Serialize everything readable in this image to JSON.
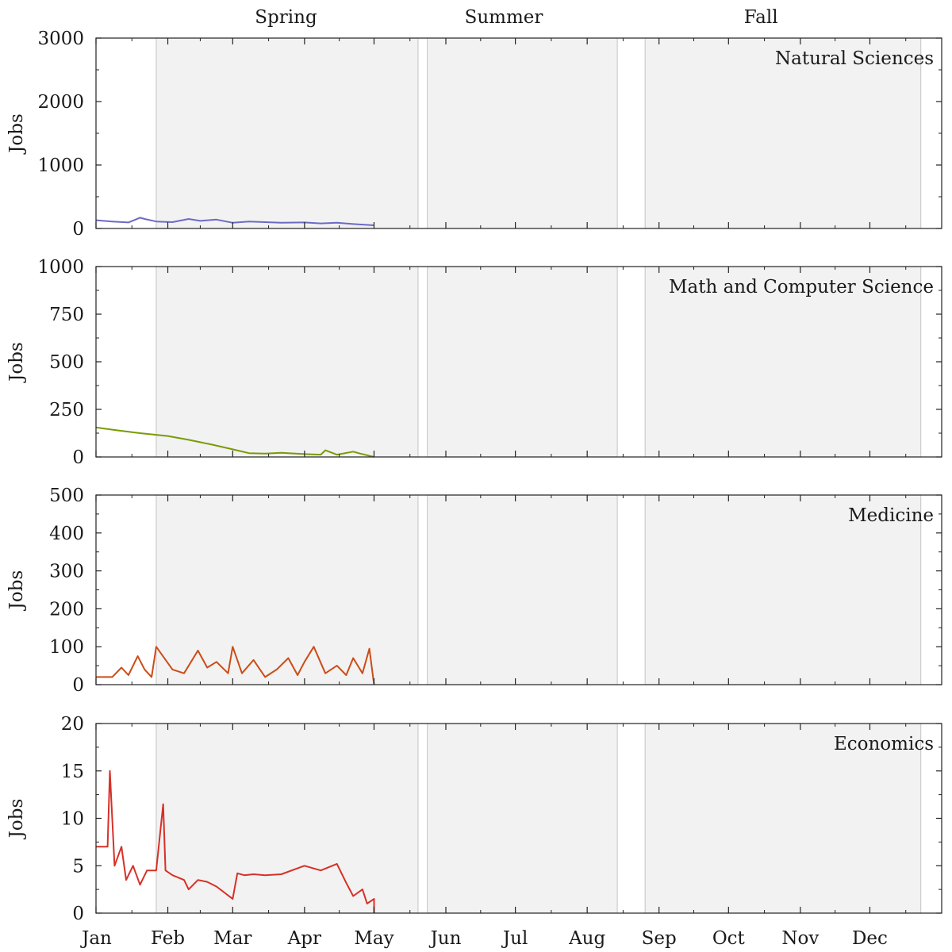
{
  "figure": {
    "season_labels": [
      {
        "name": "Spring",
        "center": "Mar 24"
      },
      {
        "name": "Summer",
        "center": "Jun 26"
      },
      {
        "name": "Fall",
        "center": "Oct 15"
      }
    ],
    "shaded_periods": [
      {
        "name": "Spring",
        "start": "Jan 27",
        "end": "May 20"
      },
      {
        "name": "Summer",
        "start": "May 24",
        "end": "Aug 14"
      },
      {
        "name": "Fall",
        "start": "Aug 26",
        "end": "Dec 23"
      }
    ],
    "x_tick_labels": [
      "Jan",
      "Feb",
      "Mar",
      "Apr",
      "May",
      "Jun",
      "Jul",
      "Aug",
      "Sep",
      "Oct",
      "Nov",
      "Dec"
    ],
    "colors": {
      "shade": "#f2f2f2",
      "shade_edge": "#c4c4c4",
      "axis": "#222222"
    }
  },
  "chart_data": [
    {
      "type": "line",
      "title": "Natural Sciences",
      "ylabel": "Jobs",
      "ylim": [
        0,
        3000
      ],
      "yticks": [
        0,
        1000,
        2000,
        3000
      ],
      "grid": false,
      "color": "#6b6bc7",
      "x": [
        "Jan 1",
        "Jan 8",
        "Jan 15",
        "Jan 20",
        "Jan 22",
        "Jan 27",
        "Feb 3",
        "Feb 10",
        "Feb 15",
        "Feb 22",
        "Mar 1",
        "Mar 8",
        "Mar 15",
        "Mar 22",
        "Apr 1",
        "Apr 8",
        "Apr 15",
        "Apr 22",
        "May 1"
      ],
      "values": [
        130,
        110,
        95,
        170,
        150,
        110,
        100,
        150,
        120,
        140,
        90,
        110,
        100,
        90,
        95,
        80,
        90,
        70,
        50
      ]
    },
    {
      "type": "line",
      "title": "Math and Computer Science",
      "ylabel": "Jobs",
      "ylim": [
        0,
        1000
      ],
      "yticks": [
        0,
        250,
        500,
        750,
        1000
      ],
      "grid": false,
      "color": "#7a9a05",
      "x": [
        "Jan 1",
        "Jan 10",
        "Jan 20",
        "Feb 1",
        "Feb 10",
        "Feb 20",
        "Mar 1",
        "Mar 8",
        "Mar 15",
        "Mar 22",
        "Apr 1",
        "Apr 8",
        "Apr 10",
        "Apr 15",
        "Apr 22",
        "Apr 25",
        "May 1"
      ],
      "values": [
        155,
        140,
        125,
        110,
        90,
        65,
        40,
        20,
        18,
        22,
        15,
        12,
        35,
        12,
        28,
        18,
        0
      ]
    },
    {
      "type": "line",
      "title": "Medicine",
      "ylabel": "Jobs",
      "ylim": [
        0,
        500
      ],
      "yticks": [
        0,
        100,
        200,
        300,
        400,
        500
      ],
      "grid": false,
      "color": "#cc4c16",
      "x": [
        "Jan 1",
        "Jan 8",
        "Jan 12",
        "Jan 15",
        "Jan 19",
        "Jan 22",
        "Jan 25",
        "Jan 27",
        "Feb 3",
        "Feb 8",
        "Feb 14",
        "Feb 18",
        "Feb 22",
        "Feb 27",
        "Mar 1",
        "Mar 5",
        "Mar 10",
        "Mar 15",
        "Mar 20",
        "Mar 25",
        "Mar 29",
        "Apr 1",
        "Apr 5",
        "Apr 10",
        "Apr 15",
        "Apr 19",
        "Apr 22",
        "Apr 26",
        "Apr 29",
        "May 1"
      ],
      "values": [
        20,
        20,
        45,
        25,
        75,
        40,
        20,
        100,
        40,
        30,
        90,
        45,
        60,
        30,
        100,
        30,
        65,
        20,
        40,
        70,
        25,
        60,
        100,
        30,
        50,
        25,
        70,
        30,
        95,
        0
      ]
    },
    {
      "type": "line",
      "title": "Economics",
      "ylabel": "Jobs",
      "ylim": [
        0,
        20
      ],
      "yticks": [
        0,
        5,
        10,
        15,
        20
      ],
      "grid": false,
      "color": "#d73027",
      "x": [
        "Jan 1",
        "Jan 6",
        "Jan 7",
        "Jan 9",
        "Jan 12",
        "Jan 14",
        "Jan 17",
        "Jan 20",
        "Jan 23",
        "Jan 27",
        "Jan 30",
        "Jan 31",
        "Feb 3",
        "Feb 8",
        "Feb 10",
        "Feb 14",
        "Feb 18",
        "Feb 22",
        "Mar 1",
        "Mar 3",
        "Mar 6",
        "Mar 10",
        "Mar 15",
        "Mar 22",
        "Apr 1",
        "Apr 8",
        "Apr 15",
        "Apr 19",
        "Apr 22",
        "Apr 26",
        "Apr 28",
        "May 1",
        "May 1"
      ],
      "values": [
        7,
        7,
        15,
        5,
        7,
        3.5,
        5,
        3,
        4.5,
        4.5,
        11.5,
        4.5,
        4,
        3.5,
        2.5,
        3.5,
        3.3,
        2.8,
        1.5,
        4.2,
        4,
        4.1,
        4,
        4.1,
        5,
        4.5,
        5.2,
        3.2,
        1.8,
        2.5,
        1,
        1.5,
        0
      ]
    }
  ]
}
